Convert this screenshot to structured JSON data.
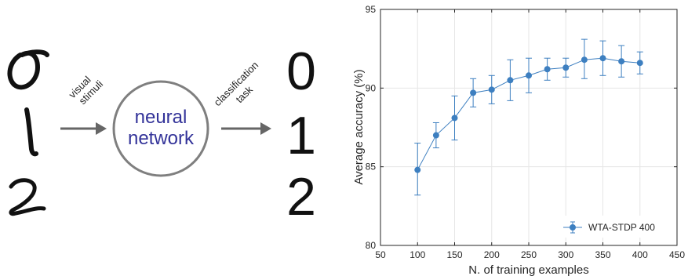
{
  "diagram": {
    "input_arrow_label": [
      "visual",
      "stimuli"
    ],
    "network_label": [
      "neural",
      "network"
    ],
    "output_arrow_label": [
      "classification",
      "task"
    ],
    "output_digits": [
      "0",
      "1",
      "2"
    ],
    "colors": {
      "network_text": "#333399",
      "circle": "#808080",
      "arrow": "#666666",
      "ink": "#111111"
    }
  },
  "chart_data": {
    "type": "line",
    "title": "",
    "xlabel": "N. of training examples",
    "ylabel": "Average accuracy (%)",
    "xlim": [
      50,
      450
    ],
    "ylim": [
      80,
      95
    ],
    "xticks": [
      50,
      100,
      150,
      200,
      250,
      300,
      350,
      400,
      450
    ],
    "yticks": [
      80,
      85,
      90,
      95
    ],
    "grid": true,
    "legend": {
      "position": "bottom-right",
      "entries": [
        "WTA-STDP 400"
      ]
    },
    "series": [
      {
        "name": "WTA-STDP 400",
        "color": "#3d7fc0",
        "x": [
          100,
          125,
          150,
          175,
          200,
          225,
          250,
          275,
          300,
          325,
          350,
          375,
          400
        ],
        "y": [
          84.8,
          87.0,
          88.1,
          89.7,
          89.9,
          90.5,
          90.8,
          91.2,
          91.3,
          91.8,
          91.9,
          91.7,
          91.6
        ],
        "err_low": [
          83.2,
          86.2,
          86.7,
          88.8,
          89.0,
          89.2,
          89.7,
          90.5,
          90.7,
          90.6,
          90.8,
          90.7,
          90.9
        ],
        "err_high": [
          86.5,
          87.8,
          89.5,
          90.6,
          90.8,
          91.8,
          91.9,
          91.9,
          91.9,
          93.1,
          93.0,
          92.7,
          92.3
        ]
      }
    ]
  }
}
